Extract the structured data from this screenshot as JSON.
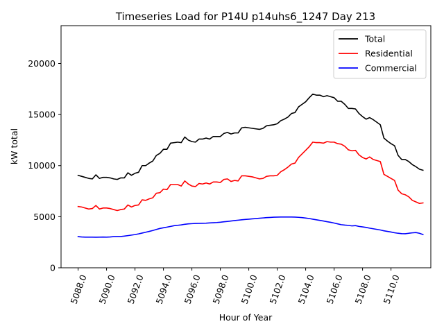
{
  "chart_data": {
    "type": "line",
    "title": "Timeseries Load for P14U p14uhs6_1247  Day 213",
    "xlabel": "Hour of Year",
    "ylabel": "kW total",
    "xlim": [
      5086.8,
      5112.8
    ],
    "ylim": [
      0,
      23700
    ],
    "xticks": [
      5088,
      5090,
      5092,
      5094,
      5096,
      5098,
      5100,
      5102,
      5104,
      5106,
      5108,
      5110
    ],
    "xtick_labels": [
      "5088.0",
      "5090.0",
      "5092.0",
      "5094.0",
      "5096.0",
      "5098.0",
      "5100.0",
      "5102.0",
      "5104.0",
      "5106.0",
      "5108.0",
      "5110.0"
    ],
    "yticks": [
      0,
      5000,
      10000,
      15000,
      20000
    ],
    "ytick_labels": [
      "0",
      "5000",
      "10000",
      "15000",
      "20000"
    ],
    "legend_position": "top-right",
    "x_start": 5088,
    "x_step": 0.25,
    "series": [
      {
        "name": "Total",
        "color": "#000000",
        "values": [
          9050,
          8950,
          8850,
          8750,
          8700,
          9100,
          8750,
          8850,
          8850,
          8800,
          8700,
          8650,
          8800,
          8800,
          9300,
          9050,
          9250,
          9350,
          10000,
          10000,
          10250,
          10450,
          11000,
          11200,
          11600,
          11600,
          12200,
          12250,
          12300,
          12250,
          12800,
          12500,
          12350,
          12300,
          12600,
          12600,
          12700,
          12600,
          12850,
          12850,
          12850,
          13150,
          13250,
          13100,
          13200,
          13200,
          13700,
          13750,
          13700,
          13650,
          13600,
          13550,
          13650,
          13900,
          13950,
          14000,
          14100,
          14400,
          14550,
          14750,
          15100,
          15200,
          15750,
          16000,
          16250,
          16650,
          17000,
          16900,
          16900,
          16750,
          16850,
          16750,
          16650,
          16300,
          16300,
          16000,
          15600,
          15600,
          15550,
          15100,
          14800,
          14550,
          14700,
          14500,
          14250,
          14000,
          12700,
          12400,
          12150,
          11950,
          11000,
          10600,
          10600,
          10400,
          10100,
          9900,
          9650,
          9550
        ]
      },
      {
        "name": "Residential",
        "color": "#ff0000",
        "values": [
          6000,
          5950,
          5850,
          5750,
          5800,
          6100,
          5750,
          5850,
          5850,
          5800,
          5700,
          5600,
          5700,
          5750,
          6150,
          5950,
          6100,
          6150,
          6650,
          6600,
          6750,
          6850,
          7300,
          7350,
          7700,
          7650,
          8150,
          8150,
          8150,
          8000,
          8500,
          8200,
          8000,
          7950,
          8250,
          8200,
          8300,
          8200,
          8400,
          8400,
          8350,
          8650,
          8700,
          8450,
          8550,
          8500,
          9000,
          9000,
          8950,
          8900,
          8800,
          8700,
          8750,
          8950,
          9000,
          9000,
          9050,
          9400,
          9600,
          9850,
          10150,
          10250,
          10800,
          11150,
          11500,
          11850,
          12300,
          12250,
          12250,
          12200,
          12350,
          12300,
          12300,
          12150,
          12100,
          11900,
          11550,
          11450,
          11500,
          11050,
          10800,
          10650,
          10850,
          10600,
          10500,
          10400,
          9150,
          8950,
          8750,
          8550,
          7600,
          7250,
          7150,
          6950,
          6600,
          6450,
          6300,
          6350
        ]
      },
      {
        "name": "Commercial",
        "color": "#0000ff",
        "values": [
          3050,
          3020,
          3000,
          3000,
          3000,
          2990,
          3000,
          3010,
          3000,
          3020,
          3050,
          3060,
          3060,
          3100,
          3150,
          3200,
          3250,
          3320,
          3400,
          3480,
          3560,
          3650,
          3750,
          3850,
          3920,
          3980,
          4050,
          4120,
          4160,
          4200,
          4260,
          4300,
          4320,
          4340,
          4350,
          4360,
          4370,
          4390,
          4410,
          4430,
          4460,
          4500,
          4540,
          4580,
          4620,
          4660,
          4700,
          4730,
          4760,
          4790,
          4820,
          4850,
          4880,
          4910,
          4930,
          4950,
          4960,
          4970,
          4970,
          4970,
          4970,
          4960,
          4940,
          4910,
          4870,
          4820,
          4760,
          4700,
          4640,
          4580,
          4510,
          4450,
          4380,
          4300,
          4220,
          4180,
          4150,
          4100,
          4130,
          4050,
          4000,
          3950,
          3880,
          3820,
          3760,
          3700,
          3620,
          3560,
          3500,
          3430,
          3380,
          3340,
          3330,
          3380,
          3420,
          3450,
          3380,
          3250
        ]
      }
    ]
  }
}
